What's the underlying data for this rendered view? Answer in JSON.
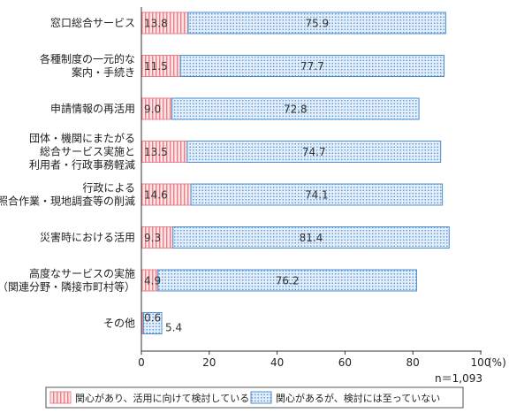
{
  "chart_data": {
    "type": "bar",
    "orientation": "horizontal",
    "stacked": true,
    "categories": [
      [
        "窓口総合サービス"
      ],
      [
        "各種制度の一元的な",
        "案内・手続き"
      ],
      [
        "申請情報の再活用"
      ],
      [
        "団体・機関にまたがる",
        "総合サービス実施と",
        "利用者・行政事務軽減"
      ],
      [
        "行政による",
        "照合作業・現地調査等の削減"
      ],
      [
        "災害時における活用"
      ],
      [
        "高度なサービスの実施",
        "（関連分野・隣接市町村等）"
      ],
      [
        "その他"
      ]
    ],
    "series": [
      {
        "name": "関心があり、活用に向けて検討している",
        "values": [
          13.8,
          11.5,
          9.0,
          13.5,
          14.6,
          9.3,
          4.9,
          0.6
        ],
        "labels": [
          "13.8",
          "11.5",
          "9.0",
          "13.5",
          "14.6",
          "9.3",
          "4.9",
          "0.6"
        ],
        "color": "#e8808a"
      },
      {
        "name": "関心があるが、検討には至っていない",
        "values": [
          75.9,
          77.7,
          72.8,
          74.7,
          74.1,
          81.4,
          76.2,
          5.4
        ],
        "labels": [
          "75.9",
          "77.7",
          "72.8",
          "74.7",
          "74.1",
          "81.4",
          "76.2",
          "5.4"
        ],
        "color": "#4a8fd4"
      }
    ],
    "xlim": [
      0,
      100
    ],
    "xticks": [
      "0",
      "20",
      "40",
      "60",
      "80",
      "100"
    ],
    "x_unit": "(%)",
    "n_note": "n＝1,093",
    "legend_position": "bottom"
  }
}
